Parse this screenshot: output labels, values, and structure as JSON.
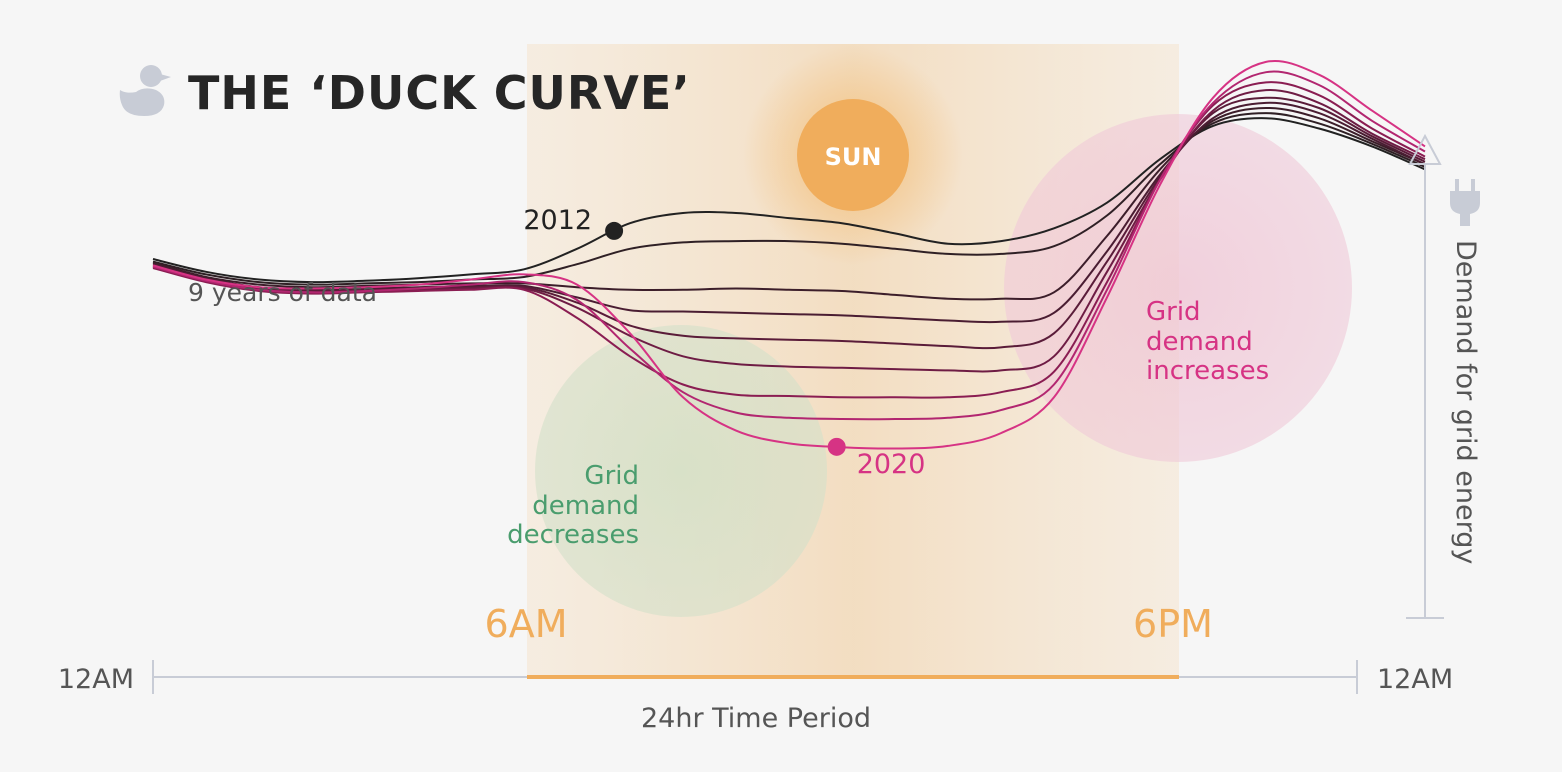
{
  "title": "THE ‘DUCK CURVE’",
  "sun_label": "SUN",
  "annotations": {
    "years_note": "9 years of data",
    "decrease": [
      "Grid",
      "demand",
      "decreases"
    ],
    "increase": [
      "Grid",
      "demand",
      "increases"
    ]
  },
  "colors": {
    "background": "#f6f6f6",
    "sun": "#f0ad5c",
    "daylight_band": "#f4e2cc",
    "decrease_circle": "#d6e3cc",
    "increase_circle": "#f0c9d8",
    "decrease_text": "#4a9d6e",
    "increase_text": "#d63384",
    "year_2012": "#262626",
    "year_2020": "#d63384",
    "time_marks": "#f0ad5c",
    "axis": "#c8ccd6"
  },
  "chart_data": {
    "type": "line",
    "xlabel": "24hr Time Period",
    "ylabel": "Demand for grid energy",
    "x_ticks": [
      "12AM",
      "6AM",
      "6PM",
      "12AM"
    ],
    "x": [
      0,
      1,
      2,
      3,
      4,
      5,
      6,
      7,
      8,
      9,
      10,
      11,
      12,
      13,
      14,
      15,
      16,
      17,
      18,
      19,
      20,
      21,
      22,
      23,
      24
    ],
    "series_styles": [
      {
        "color": "#222222"
      },
      {
        "color": "#2f2025"
      },
      {
        "color": "#3c1e2a"
      },
      {
        "color": "#4a1d32"
      },
      {
        "color": "#5a1c39"
      },
      {
        "color": "#6e1c44"
      },
      {
        "color": "#8a1d52"
      },
      {
        "color": "#b22670"
      },
      {
        "color": "#d63384"
      }
    ],
    "labeled_points": [
      {
        "label": "2012",
        "series": 0,
        "x": 8.7
      },
      {
        "label": "2020",
        "series": 8,
        "x": 12.9
      }
    ],
    "series": [
      {
        "values": [
          41,
          36,
          33,
          32,
          32.5,
          33.5,
          35,
          37,
          45,
          55,
          59,
          59,
          57,
          55,
          51,
          47,
          48,
          53,
          63,
          80,
          93,
          96,
          92,
          85,
          76
        ]
      },
      {
        "values": [
          40,
          35,
          32,
          31,
          31.5,
          32,
          33,
          34,
          39,
          45,
          47.5,
          48,
          48,
          47,
          45,
          43,
          43,
          46,
          58,
          78,
          94,
          98,
          94,
          86,
          77
        ]
      },
      {
        "values": [
          39.5,
          34,
          31,
          30,
          30.5,
          31,
          31.5,
          31.5,
          30,
          29,
          29,
          29.5,
          29,
          28.5,
          27,
          25.5,
          25.5,
          28,
          50,
          76,
          95,
          100,
          96,
          87,
          78
        ]
      },
      {
        "values": [
          39,
          33.5,
          30,
          29,
          29.5,
          30,
          30.5,
          30.5,
          26,
          21,
          20.5,
          20,
          19.5,
          19,
          18,
          17,
          16.5,
          20,
          44,
          74,
          96,
          102,
          98,
          88,
          78
        ]
      },
      {
        "values": [
          38.5,
          33,
          29.5,
          28.5,
          29,
          29.5,
          30,
          30,
          24,
          15,
          11,
          10,
          9.5,
          9,
          8,
          7,
          6.5,
          12,
          40,
          73,
          98,
          104,
          100,
          89,
          79
        ]
      },
      {
        "values": [
          38,
          32.5,
          29,
          28,
          28.5,
          29,
          29.5,
          29.5,
          22,
          11,
          3,
          0,
          -1,
          -1.5,
          -2,
          -2.5,
          -2.5,
          3,
          36,
          72,
          99,
          107,
          102,
          90,
          80
        ]
      },
      {
        "values": [
          37.5,
          32,
          28.5,
          27.5,
          28,
          28.5,
          29,
          29,
          18,
          3,
          -8,
          -12,
          -12.5,
          -13,
          -13,
          -13,
          -11,
          -3,
          32,
          72,
          101,
          110,
          105,
          92,
          81
        ]
      },
      {
        "values": [
          38,
          32.5,
          29,
          28,
          28.5,
          29.5,
          31,
          32,
          25,
          6,
          -11,
          -19,
          -21,
          -21.5,
          -21.5,
          -21,
          -18,
          -8,
          29,
          72,
          102,
          114,
          109,
          95,
          83
        ]
      },
      {
        "values": [
          38.5,
          33,
          30,
          29.5,
          30,
          31,
          33,
          35,
          31,
          12,
          -13,
          -26,
          -31,
          -32.5,
          -33,
          -32,
          -27,
          -13,
          26,
          70,
          104,
          118,
          113,
          99,
          85
        ]
      }
    ]
  }
}
